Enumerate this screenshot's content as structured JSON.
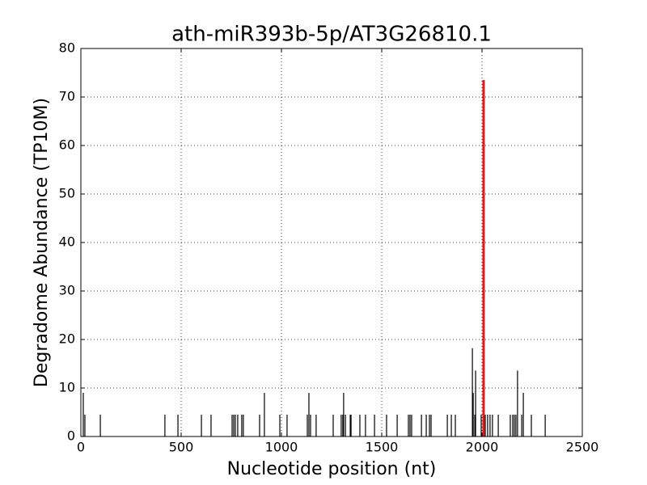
{
  "chart_data": {
    "type": "vlines",
    "title": "ath-miR393b-5p/AT3G26810.1",
    "x_label": "Nucleotide position (nt)",
    "y_label": "Degradome Abundance (TP10M)",
    "x": [
      12,
      20,
      97,
      419,
      484,
      601,
      649,
      754,
      762,
      770,
      782,
      802,
      810,
      891,
      915,
      992,
      1028,
      1129,
      1137,
      1145,
      1173,
      1258,
      1298,
      1306,
      1310,
      1319,
      1343,
      1347,
      1391,
      1419,
      1464,
      1524,
      1577,
      1633,
      1641,
      1649,
      1698,
      1722,
      1738,
      1746,
      1827,
      1847,
      1867,
      1952,
      1956,
      1964,
      1968,
      1996,
      2016,
      2028,
      2040,
      2052,
      2081,
      2141,
      2153,
      2161,
      2169,
      2177,
      2198,
      2206,
      2246,
      2315
    ],
    "values": [
      9,
      4.5,
      4.5,
      4.5,
      4.5,
      4.5,
      4.5,
      4.5,
      4.5,
      4.5,
      4.5,
      4.5,
      4.5,
      4.5,
      9,
      4.5,
      4.5,
      4.5,
      9,
      4.5,
      4.5,
      4.5,
      4.5,
      4.5,
      9,
      4.5,
      4.5,
      4.5,
      4.5,
      4.5,
      4.5,
      4.5,
      4.5,
      4.5,
      4.5,
      4.5,
      4.5,
      4.5,
      4.5,
      4.5,
      4.5,
      4.5,
      4.5,
      18.2,
      9,
      4.5,
      13.6,
      4.5,
      4.5,
      4.5,
      4.5,
      4.5,
      4.5,
      4.5,
      4.5,
      4.5,
      4.5,
      13.6,
      4.5,
      9,
      4.5,
      4.5
    ],
    "color": "#000000",
    "highlight_x": 2008,
    "highlight_value": 73.5,
    "highlight_color": "#e31a1c",
    "xlim": [
      0,
      2500
    ],
    "xticks": [
      0,
      500,
      1000,
      1500,
      2000,
      2500
    ],
    "ylim": [
      0,
      80
    ],
    "yticks": [
      0,
      10,
      20,
      30,
      40,
      50,
      60,
      70,
      80
    ],
    "grid": true
  }
}
